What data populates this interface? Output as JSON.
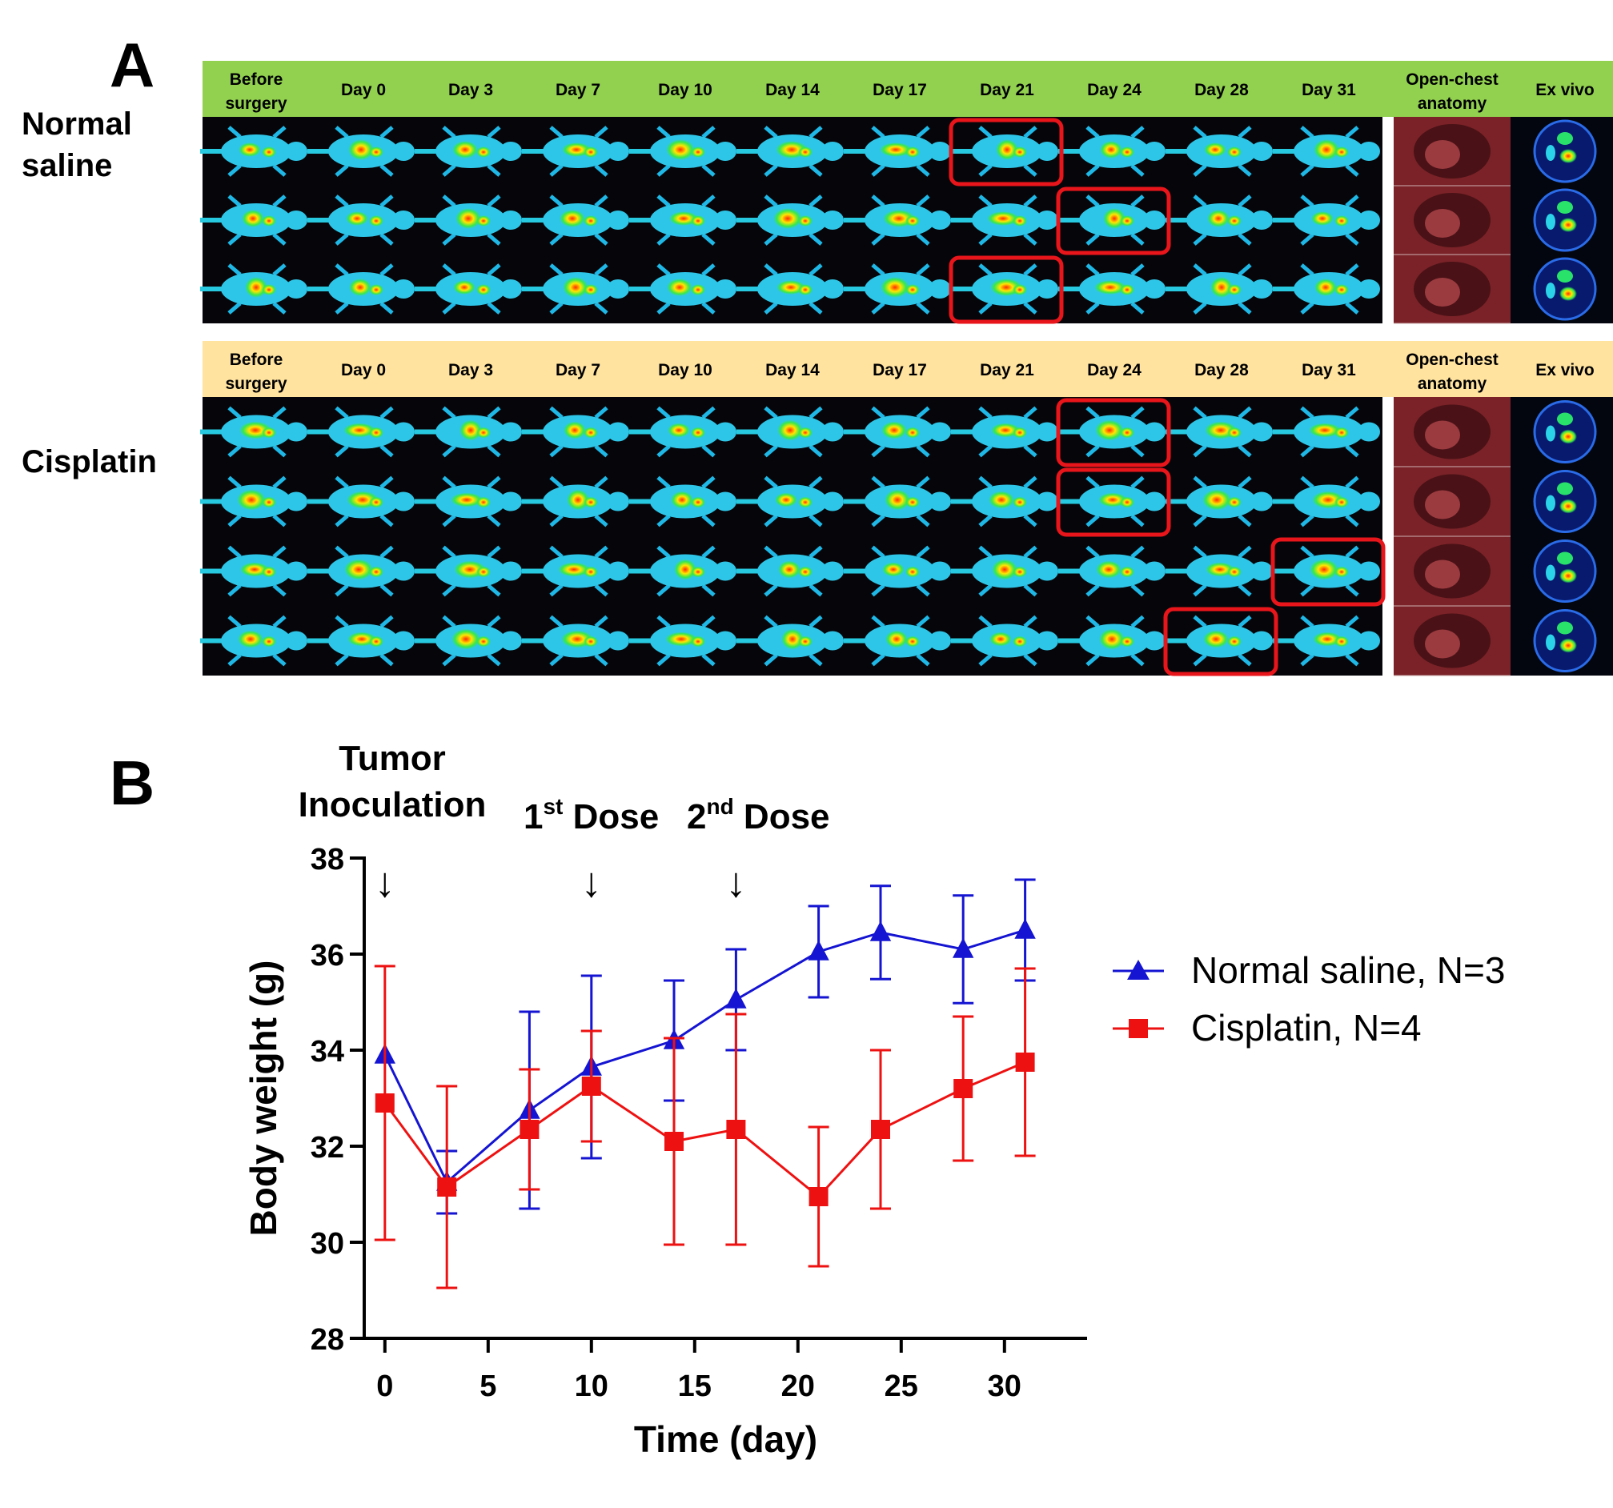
{
  "panel_a": {
    "letter": "A",
    "groups": [
      {
        "label_lines": [
          "Normal",
          "saline"
        ],
        "header_color": "#92d050",
        "rows": 3,
        "highlights": [
          [
            0,
            7
          ],
          [
            1,
            8
          ],
          [
            2,
            7
          ]
        ]
      },
      {
        "label_lines": [
          "Cisplatin"
        ],
        "header_color": "#ffe39f",
        "rows": 4,
        "highlights": [
          [
            0,
            8
          ],
          [
            1,
            8
          ],
          [
            2,
            10
          ],
          [
            3,
            9
          ]
        ]
      }
    ],
    "columns": [
      [
        "Before",
        "surgery"
      ],
      [
        "Day 0"
      ],
      [
        "Day 3"
      ],
      [
        "Day 7"
      ],
      [
        "Day 10"
      ],
      [
        "Day 14"
      ],
      [
        "Day 17"
      ],
      [
        "Day 21"
      ],
      [
        "Day 24"
      ],
      [
        "Day 28"
      ],
      [
        "Day 31"
      ],
      [
        "Open-chest",
        "anatomy"
      ],
      [
        "Ex vivo"
      ]
    ],
    "highlight_color": "#e8151b"
  },
  "panel_b": {
    "letter": "B",
    "annotations": [
      {
        "lines": [
          "Tumor",
          "Inoculation"
        ],
        "day": 0
      },
      {
        "base": "1",
        "sup": "st",
        "rest": " Dose",
        "day": 10
      },
      {
        "base": "2",
        "sup": "nd",
        "rest": " Dose",
        "day": 17
      }
    ],
    "arrow_glyph": "↓"
  },
  "chart_data": {
    "type": "line",
    "xlabel": "Time (day)",
    "ylabel": "Body weight (g)",
    "xlim": [
      -1,
      34
    ],
    "ylim": [
      28,
      38
    ],
    "xticks": [
      0,
      5,
      10,
      15,
      20,
      25,
      30
    ],
    "yticks": [
      28,
      30,
      32,
      34,
      36,
      38
    ],
    "legend_position": "right",
    "series": [
      {
        "name": "Normal saline, N=3",
        "color": "#1414d2",
        "marker": "triangle",
        "points": [
          {
            "x": 0,
            "y": 33.9,
            "err": 0
          },
          {
            "x": 3,
            "y": 31.25,
            "err": 0.65
          },
          {
            "x": 7,
            "y": 32.75,
            "err": 2.05
          },
          {
            "x": 10,
            "y": 33.65,
            "err": 1.9
          },
          {
            "x": 14,
            "y": 34.2,
            "err": 1.25
          },
          {
            "x": 17,
            "y": 35.05,
            "err": 1.05
          },
          {
            "x": 21,
            "y": 36.05,
            "err": 0.95
          },
          {
            "x": 24,
            "y": 36.45,
            "err": 0.97
          },
          {
            "x": 28,
            "y": 36.1,
            "err": 1.12
          },
          {
            "x": 31,
            "y": 36.5,
            "err": 1.05
          }
        ]
      },
      {
        "name": "Cisplatin, N=4",
        "color": "#ee1111",
        "marker": "square",
        "points": [
          {
            "x": 0,
            "y": 32.9,
            "err": 2.85
          },
          {
            "x": 3,
            "y": 31.15,
            "err": 2.1
          },
          {
            "x": 7,
            "y": 32.35,
            "err": 1.25
          },
          {
            "x": 10,
            "y": 33.25,
            "err": 1.15
          },
          {
            "x": 14,
            "y": 32.1,
            "err": 2.15
          },
          {
            "x": 17,
            "y": 32.35,
            "err": 2.4
          },
          {
            "x": 21,
            "y": 30.95,
            "err": 1.45
          },
          {
            "x": 24,
            "y": 32.35,
            "err": 1.65
          },
          {
            "x": 28,
            "y": 33.2,
            "err": 1.5
          },
          {
            "x": 31,
            "y": 33.75,
            "err": 1.95
          }
        ]
      }
    ]
  }
}
